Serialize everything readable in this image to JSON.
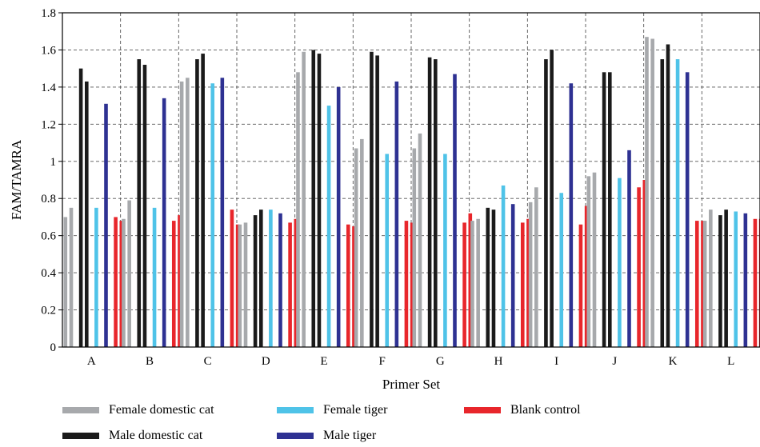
{
  "chart_data": {
    "type": "bar",
    "title": "",
    "xlabel": "Primer Set",
    "ylabel": "FAM/TAMRA",
    "ylim": [
      0,
      1.8
    ],
    "yticks": [
      "0",
      "0.2",
      "0.4",
      "0.6",
      "0.8",
      "1",
      "1.2",
      "1.4",
      "1.6",
      "1.8"
    ],
    "grid": true,
    "legend_position": "bottom",
    "categories": [
      "A",
      "B",
      "C",
      "D",
      "E",
      "F",
      "G",
      "H",
      "I",
      "J",
      "K",
      "L"
    ],
    "series": [
      {
        "name": "Female domestic cat",
        "color": "#a7a9ac",
        "groups": [
          [
            0.7,
            0.75
          ],
          [
            0.69,
            0.79
          ],
          [
            1.43,
            1.45
          ],
          [
            0.66,
            0.67
          ],
          [
            1.48,
            1.59
          ],
          [
            1.07,
            1.12
          ],
          [
            1.07,
            1.15
          ],
          [
            0.68,
            0.69
          ],
          [
            0.78,
            0.86
          ],
          [
            0.92,
            0.94
          ],
          [
            1.67,
            1.66
          ],
          [
            0.68,
            0.74
          ]
        ]
      },
      {
        "name": "Male domestic cat",
        "color": "#1a1a1a",
        "groups": [
          [
            1.5,
            1.43
          ],
          [
            1.55,
            1.52
          ],
          [
            1.55,
            1.58
          ],
          [
            0.71,
            0.74
          ],
          [
            1.6,
            1.58
          ],
          [
            1.59,
            1.57
          ],
          [
            1.56,
            1.55
          ],
          [
            0.75,
            0.74
          ],
          [
            1.55,
            1.6
          ],
          [
            1.48,
            1.48
          ],
          [
            1.55,
            1.63
          ],
          [
            0.71,
            0.74
          ]
        ]
      },
      {
        "name": "Female tiger",
        "color": "#4fc3e8",
        "groups": [
          [
            0.75
          ],
          [
            0.75
          ],
          [
            1.42
          ],
          [
            0.74
          ],
          [
            1.3
          ],
          [
            1.04
          ],
          [
            1.04
          ],
          [
            0.87
          ],
          [
            0.83
          ],
          [
            0.91
          ],
          [
            1.55
          ],
          [
            0.73
          ]
        ]
      },
      {
        "name": "Male tiger",
        "color": "#2e3192",
        "groups": [
          [
            1.31
          ],
          [
            1.34
          ],
          [
            1.45
          ],
          [
            0.72
          ],
          [
            1.4
          ],
          [
            1.43
          ],
          [
            1.47
          ],
          [
            0.77
          ],
          [
            1.42
          ],
          [
            1.06
          ],
          [
            1.48
          ],
          [
            0.72
          ]
        ]
      },
      {
        "name": "Blank control",
        "color": "#e8262b",
        "groups": [
          [
            0.7,
            0.68
          ],
          [
            0.68,
            0.71
          ],
          [
            0.74,
            0.66
          ],
          [
            0.67,
            0.69
          ],
          [
            0.66,
            0.65
          ],
          [
            0.68,
            0.67
          ],
          [
            0.67,
            0.72
          ],
          [
            0.67,
            0.69
          ],
          [
            0.66,
            0.76
          ],
          [
            0.86,
            0.9
          ],
          [
            0.68,
            0.68
          ],
          [
            0.69,
            0.69
          ]
        ]
      }
    ]
  }
}
